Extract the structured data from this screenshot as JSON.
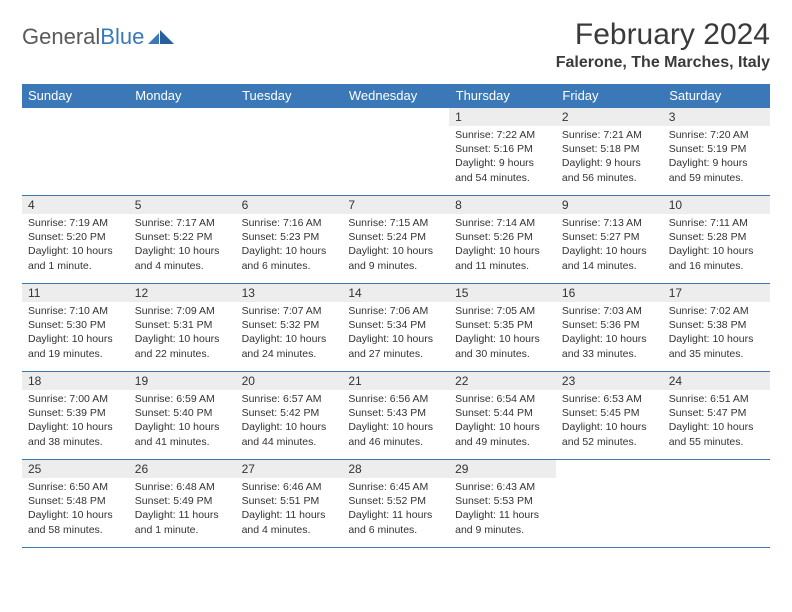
{
  "logo": {
    "part1": "General",
    "part2": "Blue"
  },
  "title": "February 2024",
  "subtitle": "Falerone, The Marches, Italy",
  "colors": {
    "accent": "#3b78b8",
    "daynum_bg": "#ededed",
    "text": "#333333",
    "header_text": "#3a3a3a",
    "logo_gray": "#5a5a5a"
  },
  "dayHeaders": [
    "Sunday",
    "Monday",
    "Tuesday",
    "Wednesday",
    "Thursday",
    "Friday",
    "Saturday"
  ],
  "weeks": [
    [
      null,
      null,
      null,
      null,
      {
        "d": "1",
        "sunrise": "7:22 AM",
        "sunset": "5:16 PM",
        "daylight": "9 hours and 54 minutes."
      },
      {
        "d": "2",
        "sunrise": "7:21 AM",
        "sunset": "5:18 PM",
        "daylight": "9 hours and 56 minutes."
      },
      {
        "d": "3",
        "sunrise": "7:20 AM",
        "sunset": "5:19 PM",
        "daylight": "9 hours and 59 minutes."
      }
    ],
    [
      {
        "d": "4",
        "sunrise": "7:19 AM",
        "sunset": "5:20 PM",
        "daylight": "10 hours and 1 minute."
      },
      {
        "d": "5",
        "sunrise": "7:17 AM",
        "sunset": "5:22 PM",
        "daylight": "10 hours and 4 minutes."
      },
      {
        "d": "6",
        "sunrise": "7:16 AM",
        "sunset": "5:23 PM",
        "daylight": "10 hours and 6 minutes."
      },
      {
        "d": "7",
        "sunrise": "7:15 AM",
        "sunset": "5:24 PM",
        "daylight": "10 hours and 9 minutes."
      },
      {
        "d": "8",
        "sunrise": "7:14 AM",
        "sunset": "5:26 PM",
        "daylight": "10 hours and 11 minutes."
      },
      {
        "d": "9",
        "sunrise": "7:13 AM",
        "sunset": "5:27 PM",
        "daylight": "10 hours and 14 minutes."
      },
      {
        "d": "10",
        "sunrise": "7:11 AM",
        "sunset": "5:28 PM",
        "daylight": "10 hours and 16 minutes."
      }
    ],
    [
      {
        "d": "11",
        "sunrise": "7:10 AM",
        "sunset": "5:30 PM",
        "daylight": "10 hours and 19 minutes."
      },
      {
        "d": "12",
        "sunrise": "7:09 AM",
        "sunset": "5:31 PM",
        "daylight": "10 hours and 22 minutes."
      },
      {
        "d": "13",
        "sunrise": "7:07 AM",
        "sunset": "5:32 PM",
        "daylight": "10 hours and 24 minutes."
      },
      {
        "d": "14",
        "sunrise": "7:06 AM",
        "sunset": "5:34 PM",
        "daylight": "10 hours and 27 minutes."
      },
      {
        "d": "15",
        "sunrise": "7:05 AM",
        "sunset": "5:35 PM",
        "daylight": "10 hours and 30 minutes."
      },
      {
        "d": "16",
        "sunrise": "7:03 AM",
        "sunset": "5:36 PM",
        "daylight": "10 hours and 33 minutes."
      },
      {
        "d": "17",
        "sunrise": "7:02 AM",
        "sunset": "5:38 PM",
        "daylight": "10 hours and 35 minutes."
      }
    ],
    [
      {
        "d": "18",
        "sunrise": "7:00 AM",
        "sunset": "5:39 PM",
        "daylight": "10 hours and 38 minutes."
      },
      {
        "d": "19",
        "sunrise": "6:59 AM",
        "sunset": "5:40 PM",
        "daylight": "10 hours and 41 minutes."
      },
      {
        "d": "20",
        "sunrise": "6:57 AM",
        "sunset": "5:42 PM",
        "daylight": "10 hours and 44 minutes."
      },
      {
        "d": "21",
        "sunrise": "6:56 AM",
        "sunset": "5:43 PM",
        "daylight": "10 hours and 46 minutes."
      },
      {
        "d": "22",
        "sunrise": "6:54 AM",
        "sunset": "5:44 PM",
        "daylight": "10 hours and 49 minutes."
      },
      {
        "d": "23",
        "sunrise": "6:53 AM",
        "sunset": "5:45 PM",
        "daylight": "10 hours and 52 minutes."
      },
      {
        "d": "24",
        "sunrise": "6:51 AM",
        "sunset": "5:47 PM",
        "daylight": "10 hours and 55 minutes."
      }
    ],
    [
      {
        "d": "25",
        "sunrise": "6:50 AM",
        "sunset": "5:48 PM",
        "daylight": "10 hours and 58 minutes."
      },
      {
        "d": "26",
        "sunrise": "6:48 AM",
        "sunset": "5:49 PM",
        "daylight": "11 hours and 1 minute."
      },
      {
        "d": "27",
        "sunrise": "6:46 AM",
        "sunset": "5:51 PM",
        "daylight": "11 hours and 4 minutes."
      },
      {
        "d": "28",
        "sunrise": "6:45 AM",
        "sunset": "5:52 PM",
        "daylight": "11 hours and 6 minutes."
      },
      {
        "d": "29",
        "sunrise": "6:43 AM",
        "sunset": "5:53 PM",
        "daylight": "11 hours and 9 minutes."
      },
      null,
      null
    ]
  ],
  "labels": {
    "sunrise": "Sunrise:",
    "sunset": "Sunset:",
    "daylight": "Daylight:"
  }
}
